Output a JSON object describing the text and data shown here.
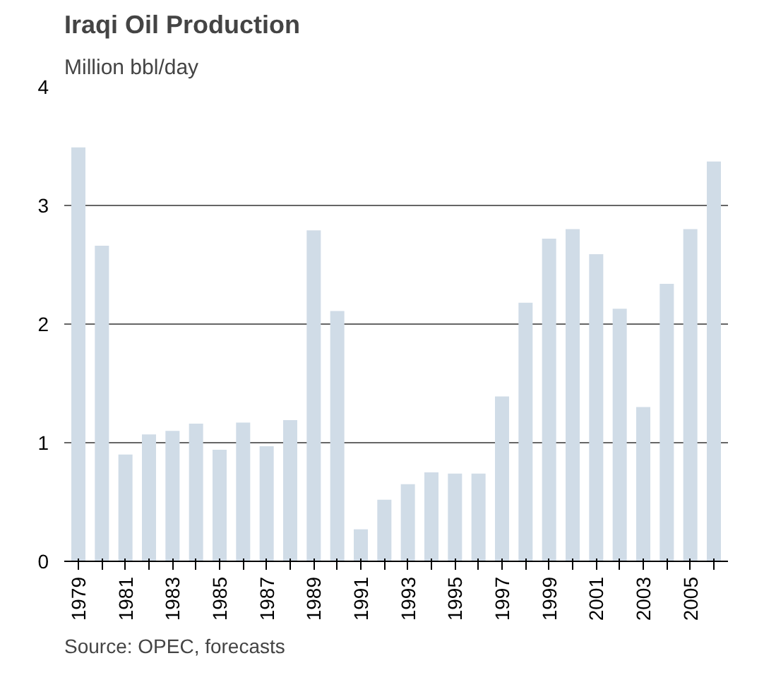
{
  "chart_data": {
    "type": "bar",
    "title": "Iraqi Oil Production",
    "subtitle": "Million bbl/day",
    "categories": [
      "1979",
      null,
      "1981",
      null,
      "1983",
      null,
      "1985",
      null,
      "1987",
      null,
      "1989",
      null,
      "1991",
      null,
      "1993",
      null,
      "1995",
      null,
      "1997",
      null,
      "1999",
      null,
      "2001",
      null,
      "2003",
      null,
      "2005",
      null
    ],
    "values": [
      3.49,
      2.66,
      0.9,
      1.07,
      1.1,
      1.16,
      0.94,
      1.17,
      0.97,
      1.19,
      2.79,
      2.11,
      0.27,
      0.52,
      0.65,
      0.75,
      0.74,
      0.74,
      1.39,
      2.18,
      2.72,
      2.8,
      2.59,
      2.13,
      1.3,
      2.34,
      2.8,
      3.37
    ],
    "color": "#d0dce7",
    "ylim": [
      0,
      4
    ],
    "yticks": [
      0,
      1,
      2,
      3,
      4
    ],
    "grid": "y",
    "annotations": [
      "Source: OPEC, forecasts"
    ]
  }
}
